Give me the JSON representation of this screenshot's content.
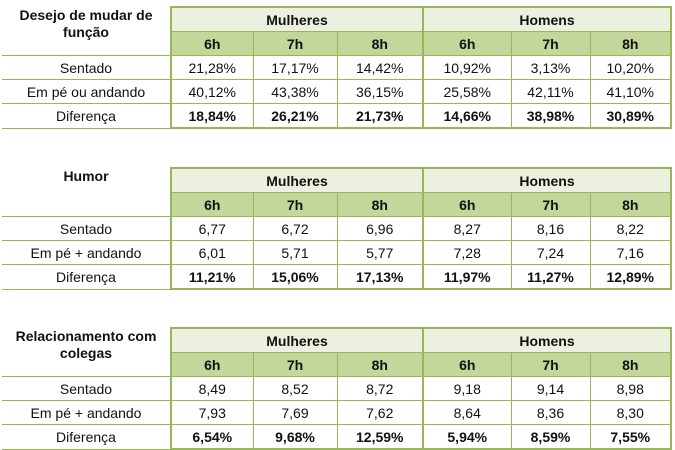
{
  "tables": [
    {
      "title": "Desejo de mudar de função",
      "groups": [
        "Mulheres",
        "Homens"
      ],
      "hours": [
        "6h",
        "7h",
        "8h",
        "6h",
        "7h",
        "8h"
      ],
      "rows": [
        {
          "label": "Sentado",
          "values": [
            "21,28%",
            "17,17%",
            "14,42%",
            "10,92%",
            "3,13%",
            "10,20%"
          ]
        },
        {
          "label": "Em pé ou andando",
          "values": [
            "40,12%",
            "43,38%",
            "36,15%",
            "25,58%",
            "42,11%",
            "41,10%"
          ]
        },
        {
          "label": "Diferença",
          "values": [
            "18,84%",
            "26,21%",
            "21,73%",
            "14,66%",
            "38,98%",
            "30,89%"
          ]
        }
      ]
    },
    {
      "title": "Humor",
      "groups": [
        "Mulheres",
        "Homens"
      ],
      "hours": [
        "6h",
        "7h",
        "8h",
        "6h",
        "7h",
        "8h"
      ],
      "rows": [
        {
          "label": "Sentado",
          "values": [
            "6,77",
            "6,72",
            "6,96",
            "8,27",
            "8,16",
            "8,22"
          ]
        },
        {
          "label": "Em pé + andando",
          "values": [
            "6,01",
            "5,71",
            "5,77",
            "7,28",
            "7,24",
            "7,16"
          ]
        },
        {
          "label": "Diferença",
          "values": [
            "11,21%",
            "15,06%",
            "17,13%",
            "11,97%",
            "11,27%",
            "12,89%"
          ]
        }
      ]
    },
    {
      "title": "Relacionamento com colegas",
      "groups": [
        "Mulheres",
        "Homens"
      ],
      "hours": [
        "6h",
        "7h",
        "8h",
        "6h",
        "7h",
        "8h"
      ],
      "rows": [
        {
          "label": "Sentado",
          "values": [
            "8,49",
            "8,52",
            "8,72",
            "9,18",
            "9,14",
            "8,98"
          ]
        },
        {
          "label": "Em pé + andando",
          "values": [
            "7,93",
            "7,69",
            "7,62",
            "8,64",
            "8,36",
            "8,30"
          ]
        },
        {
          "label": "Diferença",
          "values": [
            "6,54%",
            "9,68%",
            "12,59%",
            "5,94%",
            "8,59%",
            "7,55%"
          ]
        }
      ]
    }
  ]
}
